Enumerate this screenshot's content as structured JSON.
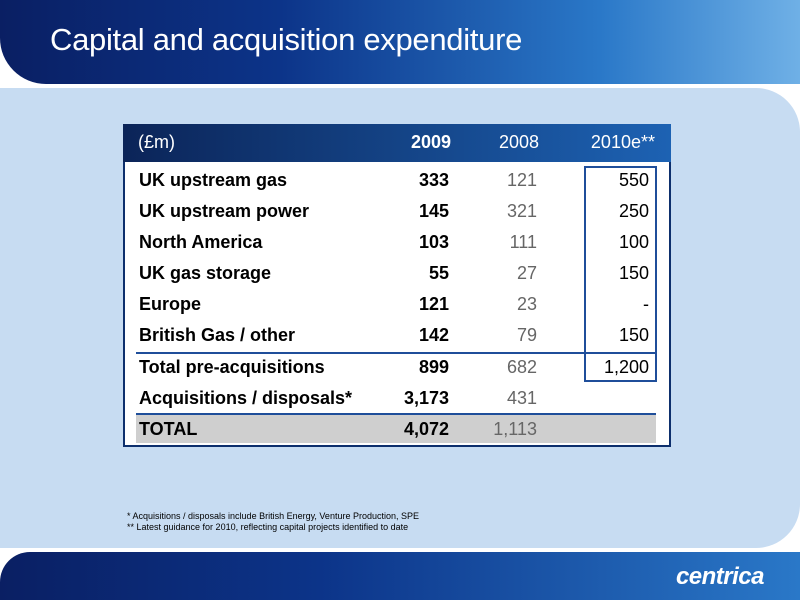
{
  "title": "Capital and acquisition expenditure",
  "table": {
    "headers": [
      "(£m)",
      "2009",
      "2008",
      "2010e**"
    ],
    "rows": [
      {
        "label": "UK upstream gas",
        "v2009": "333",
        "v2008": "121",
        "v2010": "550"
      },
      {
        "label": "UK upstream power",
        "v2009": "145",
        "v2008": "321",
        "v2010": "250"
      },
      {
        "label": "North America",
        "v2009": "103",
        "v2008": "111",
        "v2010": "100"
      },
      {
        "label": "UK gas storage",
        "v2009": "55",
        "v2008": "27",
        "v2010": "150"
      },
      {
        "label": "Europe",
        "v2009": "121",
        "v2008": "23",
        "v2010": "-"
      },
      {
        "label": "British Gas / other",
        "v2009": "142",
        "v2008": "79",
        "v2010": "150"
      },
      {
        "label": "Total pre-acquisitions",
        "v2009": "899",
        "v2008": "682",
        "v2010": "1,200"
      },
      {
        "label": "Acquisitions / disposals*",
        "v2009": "3,173",
        "v2008": "431",
        "v2010": ""
      },
      {
        "label": "TOTAL",
        "v2009": "4,072",
        "v2008": "1,113",
        "v2010": ""
      }
    ]
  },
  "footnotes": [
    "*   Acquisitions / disposals include British Energy, Venture Production, SPE",
    "** Latest guidance for 2010, reflecting capital projects identified to date"
  ],
  "logo": "centrica",
  "colors": {
    "primary": "#0c3489",
    "panel": "#c7dcf2",
    "accent": "#1f4e9a"
  }
}
